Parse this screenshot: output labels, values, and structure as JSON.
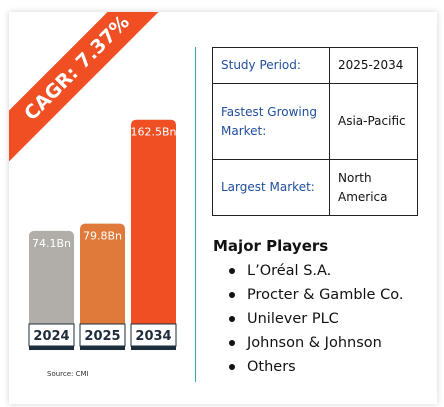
{
  "badge": {
    "text": "CAGR: 7.37%"
  },
  "chart_data": {
    "type": "bar",
    "categories": [
      "2024",
      "2025",
      "2034"
    ],
    "values": [
      74.1,
      79.8,
      162.5
    ],
    "value_labels": [
      "74.1Bn",
      "79.8Bn",
      "162.5Bn"
    ],
    "colors": [
      "#b1aeaa",
      "#e07a3a",
      "#f04e23"
    ],
    "ylim": [
      0,
      175
    ],
    "xlabel": "",
    "ylabel": "",
    "title": "",
    "grid": false
  },
  "source": "Source: CMI",
  "info_table": [
    {
      "label": "Study Period:",
      "value": "2025-2034"
    },
    {
      "label": "Fastest Growing Market:",
      "value": "Asia-Pacific"
    },
    {
      "label": "Largest Market:",
      "value": "North America"
    }
  ],
  "players": {
    "title": "Major Players",
    "items": [
      "L’Oréal S.A.",
      "Procter & Gamble Co.",
      "Unilever PLC",
      "Johnson & Johnson",
      "Others"
    ]
  },
  "colors": {
    "accent": "#f04e23",
    "divider": "#3aa6a0",
    "label_blue": "#1f4e9b",
    "base_dark": "#1e2d3b"
  }
}
